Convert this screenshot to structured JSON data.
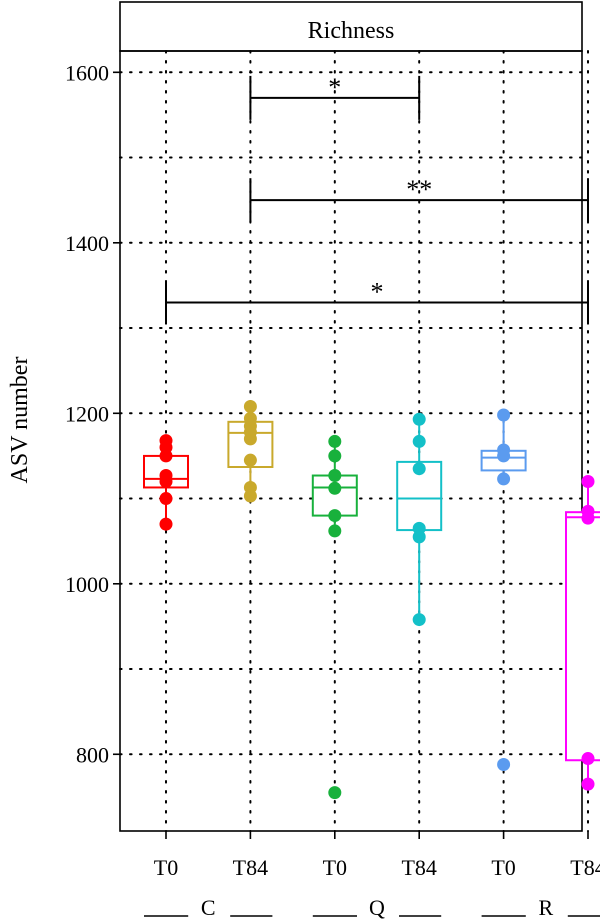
{
  "chart_data": {
    "type": "box",
    "title": "Richness",
    "ylabel": "ASV number",
    "xlabel": "",
    "ylim": [
      710,
      1625
    ],
    "yticks": [
      800,
      1000,
      1200,
      1400,
      1600
    ],
    "grid": true,
    "group_labels": [
      "C",
      "Q",
      "R"
    ],
    "categories": [
      {
        "group": "C",
        "label": "T0",
        "color": "#ff0000",
        "box": {
          "q1": 1113,
          "median": 1123,
          "q3": 1150,
          "whisker_low": 1070,
          "whisker_high": 1168
        },
        "points": [
          1168,
          1160,
          1150,
          1127,
          1120,
          1100,
          1070
        ]
      },
      {
        "group": "C",
        "label": "T84",
        "color": "#c9a92c",
        "box": {
          "q1": 1137,
          "median": 1177,
          "q3": 1190,
          "whisker_low": 1103,
          "whisker_high": 1208
        },
        "points": [
          1208,
          1194,
          1185,
          1178,
          1170,
          1145,
          1113,
          1103
        ]
      },
      {
        "group": "Q",
        "label": "T0",
        "color": "#18b13c",
        "box": {
          "q1": 1080,
          "median": 1113,
          "q3": 1127,
          "whisker_low": 1062,
          "whisker_high": 1167
        },
        "points": [
          1167,
          1150,
          1127,
          1112,
          1080,
          1062,
          755
        ]
      },
      {
        "group": "Q",
        "label": "T84",
        "color": "#13c0c8",
        "box": {
          "q1": 1063,
          "median": 1100,
          "q3": 1143,
          "whisker_low": 958,
          "whisker_high": 1193
        },
        "points": [
          1193,
          1167,
          1135,
          1065,
          1055,
          958
        ]
      },
      {
        "group": "R",
        "label": "T0",
        "color": "#5b9bef",
        "box": {
          "q1": 1133,
          "median": 1148,
          "q3": 1156,
          "whisker_low": 1123,
          "whisker_high": 1198
        },
        "points": [
          1198,
          1157,
          1150,
          1123,
          788
        ]
      },
      {
        "group": "R",
        "label": "T84",
        "color": "#ff00ff",
        "box": {
          "q1": 793,
          "median": 1078,
          "q3": 1084,
          "whisker_low": 765,
          "whisker_high": 1120
        },
        "points": [
          1120,
          1085,
          1077,
          795,
          765
        ]
      }
    ],
    "significance": [
      {
        "from": 1,
        "to": 3,
        "y": 1570,
        "label": "*"
      },
      {
        "from": 1,
        "to": 5,
        "y": 1450,
        "label": "**"
      },
      {
        "from": 0,
        "to": 5,
        "y": 1330,
        "label": "*"
      }
    ]
  }
}
